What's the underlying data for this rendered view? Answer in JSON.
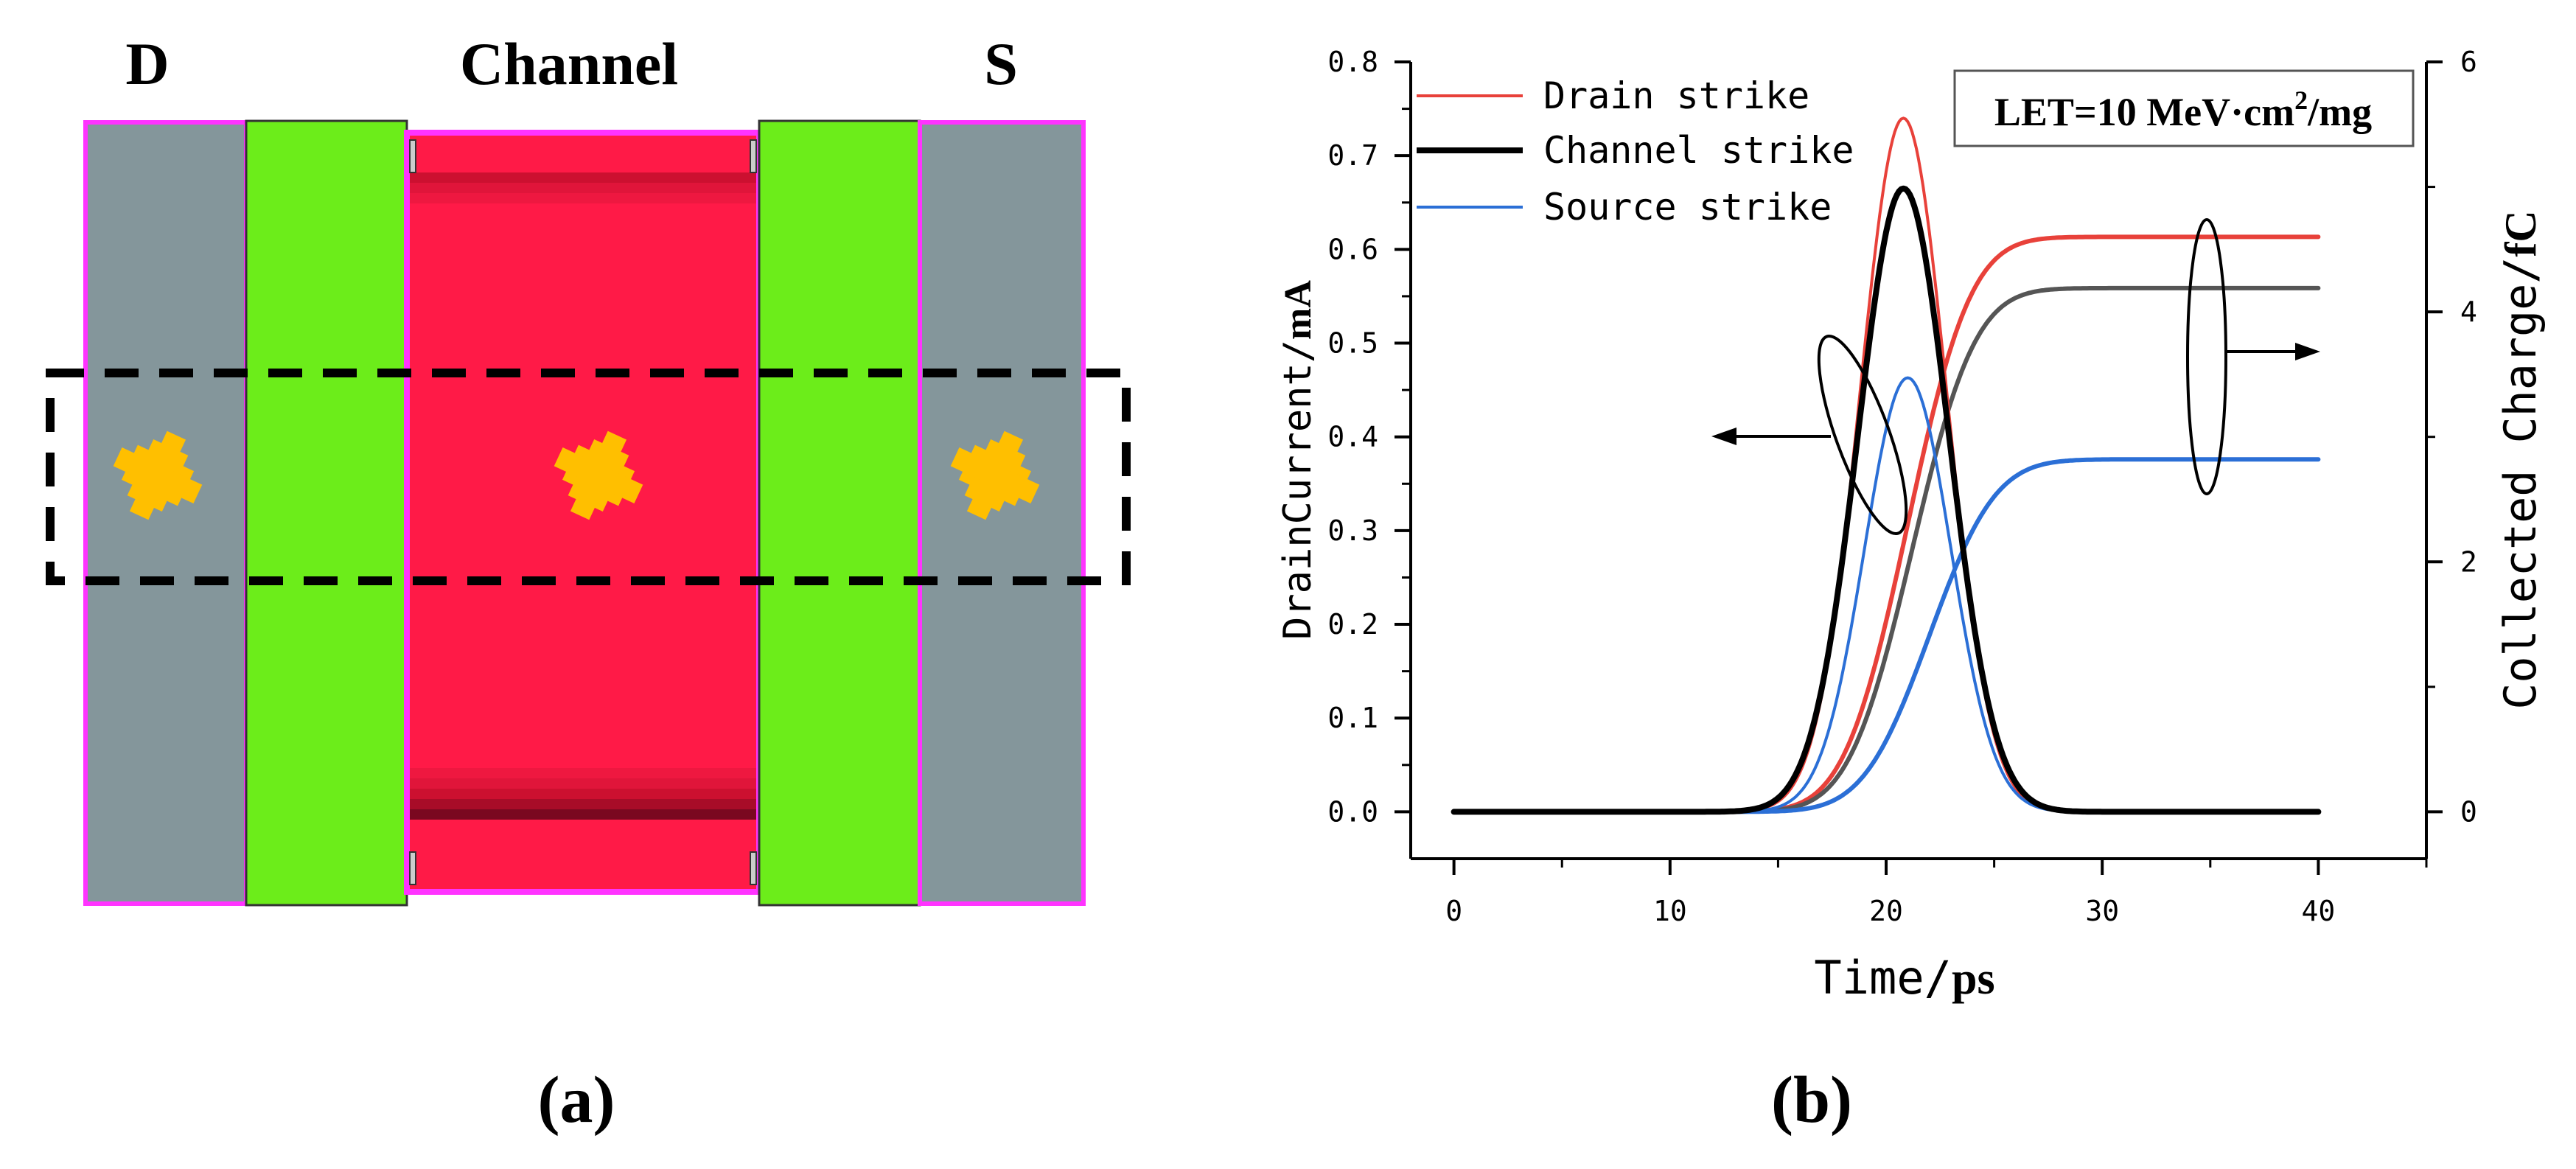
{
  "panel_a": {
    "label_d": "D",
    "label_channel": "Channel",
    "label_s": "S",
    "caption": "(a)",
    "colors": {
      "contact": "#84969b",
      "spacer": "#6ced1a",
      "channel": "#ff1a47",
      "border": "#ff33ff",
      "strike": "#ffbf00"
    }
  },
  "panel_b": {
    "caption": "(b)",
    "annotation_prefix": "LET=10 MeV·cm",
    "annotation_sup": "2",
    "annotation_suffix": "/mg"
  },
  "chart_data": {
    "type": "line",
    "xlabel_mono": "Time/",
    "xlabel_bold": "ps",
    "ylabel_mono": "DrainCurrent/",
    "ylabel_bold": "mA",
    "y2label_mono": "Collected Charge/",
    "y2label_bold": "fC",
    "xlim": [
      -2,
      45
    ],
    "ylim": [
      -0.05,
      0.8
    ],
    "y2lim": [
      -0.375,
      6.0
    ],
    "x_ticks": [
      0,
      10,
      20,
      30,
      40
    ],
    "x_tick_labels": [
      "0",
      "10",
      "20",
      "30",
      "40"
    ],
    "y_ticks": [
      0.0,
      0.1,
      0.2,
      0.3,
      0.4,
      0.5,
      0.6,
      0.7,
      0.8
    ],
    "y_tick_labels": [
      "0.0",
      "0.1",
      "0.2",
      "0.3",
      "0.4",
      "0.5",
      "0.6",
      "0.7",
      "0.8"
    ],
    "y2_ticks": [
      0,
      2,
      4,
      6
    ],
    "y2_tick_labels": [
      "0",
      "2",
      "4",
      "6"
    ],
    "legend": [
      "Drain strike",
      "Channel strike",
      "Source strike"
    ],
    "legend_position": "top-left",
    "series": [
      {
        "name": "Drain strike",
        "axis": "left",
        "kind": "gaussian",
        "color": "#e8413a",
        "peak": 0.74,
        "center": 20.8,
        "sigma": 2.0
      },
      {
        "name": "Channel strike",
        "axis": "left",
        "kind": "gaussian",
        "color": "#000000",
        "peak": 0.665,
        "center": 20.8,
        "sigma": 2.1
      },
      {
        "name": "Source strike",
        "axis": "left",
        "kind": "gaussian",
        "color": "#2b6fd6",
        "peak": 0.463,
        "center": 21.0,
        "sigma": 2.0
      },
      {
        "name": "Drain strike charge",
        "axis": "right",
        "kind": "cumulative",
        "color": "#e8413a",
        "final": 4.6,
        "center": 21.0,
        "sigma": 2.3
      },
      {
        "name": "Channel strike charge",
        "axis": "right",
        "kind": "cumulative",
        "color": "#555555",
        "final": 4.19,
        "center": 21.2,
        "sigma": 2.3
      },
      {
        "name": "Source strike charge",
        "axis": "right",
        "kind": "cumulative",
        "color": "#2b6fd6",
        "final": 2.82,
        "center": 22.0,
        "sigma": 2.4
      }
    ],
    "x_range": [
      0,
      40
    ]
  }
}
